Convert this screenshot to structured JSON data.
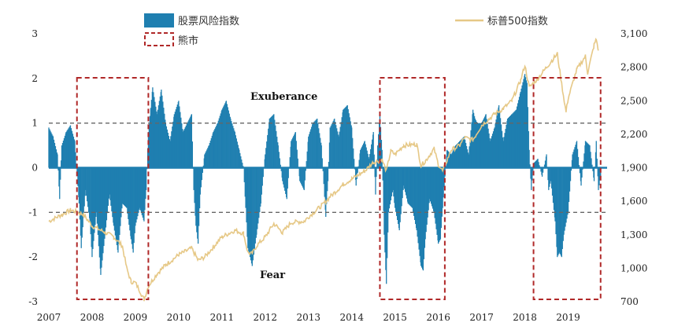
{
  "chart_data": {
    "type": "bar+line",
    "colors": {
      "risk_bar": "#1f7fb0",
      "sp500_line": "#e6c886",
      "bear_box": "#b02828",
      "ref_line": "#666666"
    },
    "legend": {
      "risk_label": "股票风险指数",
      "sp500_label": "标普500指数",
      "bear_label": "熊市",
      "placement": "top"
    },
    "annotations": {
      "upper": "Exuberance",
      "lower": "Fear"
    },
    "x_axis": {
      "start_year": 2007,
      "end_year": 2019.9,
      "ticks": [
        "2007",
        "2008",
        "2009",
        "2010",
        "2011",
        "2012",
        "2013",
        "2014",
        "2015",
        "2016",
        "2017",
        "2018",
        "2019"
      ]
    },
    "y_left": {
      "min": -3,
      "max": 3,
      "ticks": [
        "3",
        "2",
        "1",
        "0",
        "-1",
        "-2",
        "-3"
      ]
    },
    "y_right": {
      "min": 700,
      "max": 3100,
      "ticks": [
        "3,100",
        "2,800",
        "2,500",
        "2,200",
        "1,900",
        "1,600",
        "1,300",
        "1,000",
        "700"
      ]
    },
    "reference_lines": [
      1,
      -1
    ],
    "bear_markets": [
      {
        "start": 2007.65,
        "end": 2009.3
      },
      {
        "start": 2014.65,
        "end": 2016.15
      },
      {
        "start": 2018.2,
        "end": 2019.75
      }
    ],
    "series": [
      {
        "name": "股票风险指数",
        "axis": "left",
        "style": "bar",
        "points": [
          [
            2007.0,
            0.9
          ],
          [
            2007.1,
            0.7
          ],
          [
            2007.2,
            0.3
          ],
          [
            2007.25,
            -0.7
          ],
          [
            2007.3,
            0.5
          ],
          [
            2007.4,
            0.8
          ],
          [
            2007.5,
            0.95
          ],
          [
            2007.6,
            0.6
          ],
          [
            2007.7,
            -0.8
          ],
          [
            2007.75,
            -1.8
          ],
          [
            2007.85,
            -0.5
          ],
          [
            2007.95,
            -1.2
          ],
          [
            2008.0,
            -2.0
          ],
          [
            2008.1,
            -1.0
          ],
          [
            2008.2,
            -2.4
          ],
          [
            2008.3,
            -1.5
          ],
          [
            2008.4,
            -0.6
          ],
          [
            2008.5,
            -1.3
          ],
          [
            2008.6,
            -1.9
          ],
          [
            2008.7,
            -0.8
          ],
          [
            2008.8,
            -0.9
          ],
          [
            2008.9,
            -1.6
          ],
          [
            2008.95,
            -1.9
          ],
          [
            2009.0,
            -1.3
          ],
          [
            2009.1,
            -0.9
          ],
          [
            2009.2,
            -1.2
          ],
          [
            2009.25,
            -0.5
          ],
          [
            2009.3,
            0.8
          ],
          [
            2009.4,
            1.8
          ],
          [
            2009.5,
            1.2
          ],
          [
            2009.6,
            1.75
          ],
          [
            2009.7,
            1.0
          ],
          [
            2009.8,
            0.6
          ],
          [
            2009.9,
            1.2
          ],
          [
            2010.0,
            1.5
          ],
          [
            2010.1,
            0.8
          ],
          [
            2010.2,
            1.0
          ],
          [
            2010.3,
            1.2
          ],
          [
            2010.35,
            -0.5
          ],
          [
            2010.4,
            -1.3
          ],
          [
            2010.45,
            -1.7
          ],
          [
            2010.5,
            -0.6
          ],
          [
            2010.6,
            0.3
          ],
          [
            2010.7,
            0.5
          ],
          [
            2010.8,
            0.8
          ],
          [
            2010.9,
            1.0
          ],
          [
            2011.0,
            1.3
          ],
          [
            2011.1,
            1.5
          ],
          [
            2011.2,
            1.1
          ],
          [
            2011.3,
            0.8
          ],
          [
            2011.4,
            0.4
          ],
          [
            2011.5,
            0.0
          ],
          [
            2011.55,
            -0.9
          ],
          [
            2011.6,
            -1.8
          ],
          [
            2011.65,
            -2.0
          ],
          [
            2011.7,
            -2.2
          ],
          [
            2011.8,
            -1.5
          ],
          [
            2011.9,
            -0.8
          ],
          [
            2012.0,
            0.3
          ],
          [
            2012.1,
            1.1
          ],
          [
            2012.2,
            1.2
          ],
          [
            2012.3,
            0.5
          ],
          [
            2012.4,
            -0.3
          ],
          [
            2012.5,
            -0.7
          ],
          [
            2012.6,
            0.6
          ],
          [
            2012.7,
            0.8
          ],
          [
            2012.8,
            -0.3
          ],
          [
            2012.9,
            -0.5
          ],
          [
            2013.0,
            0.7
          ],
          [
            2013.1,
            1.0
          ],
          [
            2013.2,
            1.1
          ],
          [
            2013.3,
            0.5
          ],
          [
            2013.4,
            -1.1
          ],
          [
            2013.45,
            -0.3
          ],
          [
            2013.5,
            0.9
          ],
          [
            2013.6,
            1.1
          ],
          [
            2013.7,
            0.7
          ],
          [
            2013.8,
            1.3
          ],
          [
            2013.9,
            1.4
          ],
          [
            2014.0,
            0.9
          ],
          [
            2014.1,
            -0.4
          ],
          [
            2014.2,
            0.4
          ],
          [
            2014.3,
            0.6
          ],
          [
            2014.4,
            0.2
          ],
          [
            2014.5,
            0.8
          ],
          [
            2014.55,
            -0.6
          ],
          [
            2014.6,
            0.5
          ],
          [
            2014.65,
            1.2
          ],
          [
            2014.7,
            0.4
          ],
          [
            2014.75,
            -1.5
          ],
          [
            2014.8,
            -2.6
          ],
          [
            2014.85,
            -1.0
          ],
          [
            2014.95,
            -0.5
          ],
          [
            2015.0,
            -0.9
          ],
          [
            2015.1,
            -1.4
          ],
          [
            2015.2,
            -0.4
          ],
          [
            2015.3,
            -0.8
          ],
          [
            2015.4,
            -0.9
          ],
          [
            2015.5,
            -1.4
          ],
          [
            2015.6,
            -2.2
          ],
          [
            2015.65,
            -2.3
          ],
          [
            2015.7,
            -1.6
          ],
          [
            2015.8,
            -0.7
          ],
          [
            2015.9,
            -1.0
          ],
          [
            2016.0,
            -1.7
          ],
          [
            2016.05,
            -1.6
          ],
          [
            2016.1,
            -0.9
          ],
          [
            2016.2,
            0.4
          ],
          [
            2016.3,
            0.3
          ],
          [
            2016.4,
            0.5
          ],
          [
            2016.5,
            0.6
          ],
          [
            2016.6,
            0.7
          ],
          [
            2016.7,
            0.3
          ],
          [
            2016.8,
            1.3
          ],
          [
            2016.85,
            1.1
          ],
          [
            2016.9,
            1.0
          ],
          [
            2017.0,
            1.0
          ],
          [
            2017.1,
            1.2
          ],
          [
            2017.2,
            0.6
          ],
          [
            2017.3,
            0.9
          ],
          [
            2017.4,
            1.4
          ],
          [
            2017.5,
            0.6
          ],
          [
            2017.6,
            1.1
          ],
          [
            2017.7,
            1.2
          ],
          [
            2017.8,
            1.3
          ],
          [
            2017.9,
            1.7
          ],
          [
            2018.0,
            2.1
          ],
          [
            2018.05,
            1.9
          ],
          [
            2018.1,
            0.4
          ],
          [
            2018.15,
            -0.5
          ],
          [
            2018.2,
            0.1
          ],
          [
            2018.3,
            0.2
          ],
          [
            2018.4,
            -0.2
          ],
          [
            2018.5,
            0.3
          ],
          [
            2018.55,
            -0.5
          ],
          [
            2018.6,
            -0.3
          ],
          [
            2018.7,
            -1.2
          ],
          [
            2018.75,
            -2.0
          ],
          [
            2018.8,
            -1.9
          ],
          [
            2018.85,
            -2.0
          ],
          [
            2018.9,
            -1.5
          ],
          [
            2019.0,
            -1.0
          ],
          [
            2019.1,
            0.3
          ],
          [
            2019.2,
            0.6
          ],
          [
            2019.3,
            -0.4
          ],
          [
            2019.4,
            0.6
          ],
          [
            2019.5,
            0.5
          ],
          [
            2019.6,
            -0.3
          ],
          [
            2019.65,
            0.6
          ],
          [
            2019.7,
            -0.5
          ],
          [
            2019.75,
            -0.2
          ]
        ]
      },
      {
        "name": "标普500指数",
        "axis": "right",
        "style": "line",
        "points": [
          [
            2007.0,
            1420
          ],
          [
            2007.3,
            1480
          ],
          [
            2007.5,
            1520
          ],
          [
            2007.6,
            1510
          ],
          [
            2007.8,
            1480
          ],
          [
            2008.0,
            1380
          ],
          [
            2008.3,
            1320
          ],
          [
            2008.5,
            1280
          ],
          [
            2008.7,
            1200
          ],
          [
            2008.8,
            1000
          ],
          [
            2008.9,
            880
          ],
          [
            2009.0,
            870
          ],
          [
            2009.1,
            800
          ],
          [
            2009.2,
            720
          ],
          [
            2009.3,
            840
          ],
          [
            2009.5,
            950
          ],
          [
            2009.7,
            1030
          ],
          [
            2010.0,
            1120
          ],
          [
            2010.3,
            1180
          ],
          [
            2010.45,
            1070
          ],
          [
            2010.6,
            1100
          ],
          [
            2010.8,
            1190
          ],
          [
            2011.0,
            1280
          ],
          [
            2011.3,
            1340
          ],
          [
            2011.5,
            1310
          ],
          [
            2011.6,
            1140
          ],
          [
            2011.7,
            1130
          ],
          [
            2011.8,
            1200
          ],
          [
            2012.0,
            1280
          ],
          [
            2012.2,
            1400
          ],
          [
            2012.4,
            1320
          ],
          [
            2012.6,
            1410
          ],
          [
            2012.9,
            1420
          ],
          [
            2013.0,
            1460
          ],
          [
            2013.3,
            1560
          ],
          [
            2013.5,
            1640
          ],
          [
            2013.8,
            1750
          ],
          [
            2014.0,
            1800
          ],
          [
            2014.3,
            1870
          ],
          [
            2014.5,
            1950
          ],
          [
            2014.7,
            1970
          ],
          [
            2014.8,
            1870
          ],
          [
            2014.9,
            2050
          ],
          [
            2015.0,
            2020
          ],
          [
            2015.2,
            2100
          ],
          [
            2015.5,
            2110
          ],
          [
            2015.6,
            1920
          ],
          [
            2015.7,
            1960
          ],
          [
            2015.9,
            2070
          ],
          [
            2016.0,
            1930
          ],
          [
            2016.1,
            1870
          ],
          [
            2016.3,
            2060
          ],
          [
            2016.5,
            2100
          ],
          [
            2016.6,
            2170
          ],
          [
            2016.8,
            2150
          ],
          [
            2017.0,
            2280
          ],
          [
            2017.3,
            2380
          ],
          [
            2017.5,
            2430
          ],
          [
            2017.7,
            2500
          ],
          [
            2017.9,
            2680
          ],
          [
            2018.0,
            2820
          ],
          [
            2018.1,
            2620
          ],
          [
            2018.3,
            2700
          ],
          [
            2018.6,
            2850
          ],
          [
            2018.75,
            2920
          ],
          [
            2018.85,
            2650
          ],
          [
            2018.95,
            2400
          ],
          [
            2019.0,
            2520
          ],
          [
            2019.2,
            2780
          ],
          [
            2019.4,
            2900
          ],
          [
            2019.45,
            2750
          ],
          [
            2019.6,
            3000
          ],
          [
            2019.65,
            3050
          ],
          [
            2019.7,
            2950
          ]
        ]
      }
    ]
  }
}
